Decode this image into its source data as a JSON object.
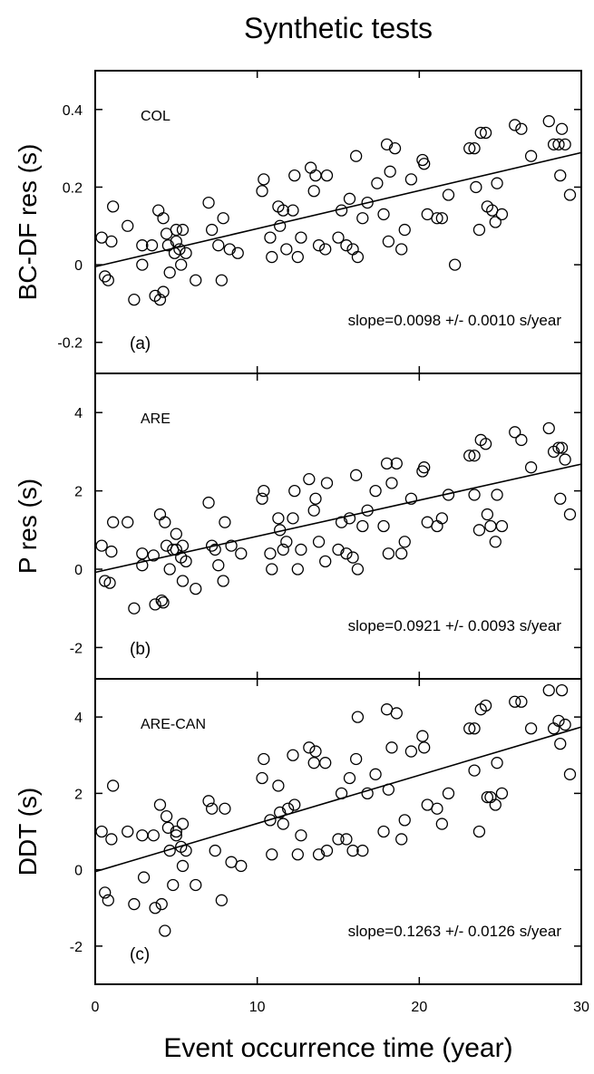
{
  "title": "Synthetic tests",
  "chart_data": {
    "type": "scatter",
    "title": "Synthetic tests",
    "xlabel": "Event occurrence time (year)",
    "xlim": [
      0,
      30
    ],
    "xticks": [
      0,
      10,
      20,
      30
    ],
    "grid": false,
    "panels": [
      {
        "letter": "(a)",
        "station": "COL",
        "ylabel": "BC-DF res (s)",
        "ylim": [
          -0.28,
          0.5
        ],
        "yticks": [
          -0.2,
          0,
          0.2,
          0.4
        ],
        "ytick_labels": [
          "-0.2",
          "0",
          "0.2",
          "0.4"
        ],
        "slope_text": "slope=0.0098 +/- 0.0010 s/year",
        "fit": {
          "intercept": -0.005,
          "slope": 0.0098
        },
        "points": [
          [
            0.4,
            0.07
          ],
          [
            0.6,
            -0.03
          ],
          [
            0.8,
            -0.04
          ],
          [
            1.0,
            0.06
          ],
          [
            1.1,
            0.15
          ],
          [
            2.0,
            0.1
          ],
          [
            2.4,
            -0.09
          ],
          [
            2.9,
            0.05
          ],
          [
            2.9,
            0.0
          ],
          [
            3.5,
            0.05
          ],
          [
            3.7,
            -0.08
          ],
          [
            3.9,
            0.14
          ],
          [
            4.0,
            -0.09
          ],
          [
            4.2,
            0.12
          ],
          [
            4.2,
            -0.07
          ],
          [
            4.4,
            0.08
          ],
          [
            4.5,
            0.05
          ],
          [
            4.6,
            -0.02
          ],
          [
            4.9,
            0.03
          ],
          [
            5.0,
            0.09
          ],
          [
            5.0,
            0.06
          ],
          [
            5.2,
            0.04
          ],
          [
            5.3,
            0.0
          ],
          [
            5.4,
            0.09
          ],
          [
            5.6,
            0.03
          ],
          [
            6.2,
            -0.04
          ],
          [
            7.0,
            0.16
          ],
          [
            7.2,
            0.09
          ],
          [
            7.6,
            0.05
          ],
          [
            7.9,
            0.12
          ],
          [
            7.8,
            -0.04
          ],
          [
            8.3,
            0.04
          ],
          [
            8.8,
            0.03
          ],
          [
            10.3,
            0.19
          ],
          [
            10.4,
            0.22
          ],
          [
            10.8,
            0.07
          ],
          [
            10.9,
            0.02
          ],
          [
            11.3,
            0.15
          ],
          [
            11.4,
            0.1
          ],
          [
            11.6,
            0.14
          ],
          [
            11.8,
            0.04
          ],
          [
            12.2,
            0.14
          ],
          [
            12.3,
            0.23
          ],
          [
            12.5,
            0.02
          ],
          [
            12.7,
            0.07
          ],
          [
            13.3,
            0.25
          ],
          [
            13.5,
            0.19
          ],
          [
            13.6,
            0.23
          ],
          [
            13.8,
            0.05
          ],
          [
            14.2,
            0.04
          ],
          [
            14.3,
            0.23
          ],
          [
            15.0,
            0.07
          ],
          [
            15.2,
            0.14
          ],
          [
            15.5,
            0.05
          ],
          [
            15.7,
            0.17
          ],
          [
            15.9,
            0.04
          ],
          [
            16.1,
            0.28
          ],
          [
            16.2,
            0.02
          ],
          [
            16.5,
            0.12
          ],
          [
            16.8,
            0.16
          ],
          [
            17.4,
            0.21
          ],
          [
            17.8,
            0.13
          ],
          [
            18.0,
            0.31
          ],
          [
            18.1,
            0.06
          ],
          [
            18.2,
            0.24
          ],
          [
            18.5,
            0.3
          ],
          [
            18.9,
            0.04
          ],
          [
            19.1,
            0.09
          ],
          [
            19.5,
            0.22
          ],
          [
            20.2,
            0.27
          ],
          [
            20.3,
            0.26
          ],
          [
            20.5,
            0.13
          ],
          [
            21.1,
            0.12
          ],
          [
            21.4,
            0.12
          ],
          [
            21.8,
            0.18
          ],
          [
            22.2,
            0.0
          ],
          [
            23.1,
            0.3
          ],
          [
            23.4,
            0.3
          ],
          [
            23.5,
            0.2
          ],
          [
            23.8,
            0.34
          ],
          [
            23.7,
            0.09
          ],
          [
            24.1,
            0.34
          ],
          [
            24.2,
            0.15
          ],
          [
            24.5,
            0.14
          ],
          [
            24.7,
            0.11
          ],
          [
            24.8,
            0.21
          ],
          [
            25.1,
            0.13
          ],
          [
            25.9,
            0.36
          ],
          [
            26.3,
            0.35
          ],
          [
            26.9,
            0.28
          ],
          [
            28.0,
            0.37
          ],
          [
            28.3,
            0.31
          ],
          [
            28.6,
            0.31
          ],
          [
            28.7,
            0.23
          ],
          [
            28.8,
            0.35
          ],
          [
            29.0,
            0.31
          ],
          [
            29.3,
            0.18
          ]
        ]
      },
      {
        "letter": "(b)",
        "station": "ARE",
        "ylabel": "P res (s)",
        "ylim": [
          -2.8,
          5.0
        ],
        "yticks": [
          -2,
          0,
          2,
          4
        ],
        "ytick_labels": [
          "-2",
          "0",
          "2",
          "4"
        ],
        "slope_text": "slope=0.0921 +/- 0.0093 s/year",
        "fit": {
          "intercept": -0.08,
          "slope": 0.0921
        },
        "points": [
          [
            0.4,
            0.6
          ],
          [
            0.6,
            -0.3
          ],
          [
            0.9,
            -0.35
          ],
          [
            1.0,
            0.45
          ],
          [
            1.1,
            1.2
          ],
          [
            2.0,
            1.2
          ],
          [
            2.4,
            -1.0
          ],
          [
            2.9,
            0.1
          ],
          [
            2.9,
            0.4
          ],
          [
            3.6,
            0.35
          ],
          [
            3.7,
            -0.9
          ],
          [
            4.0,
            1.4
          ],
          [
            4.1,
            -0.8
          ],
          [
            4.2,
            -0.85
          ],
          [
            4.3,
            1.2
          ],
          [
            4.4,
            0.6
          ],
          [
            4.6,
            0.0
          ],
          [
            4.8,
            0.5
          ],
          [
            5.0,
            0.9
          ],
          [
            5.0,
            0.5
          ],
          [
            5.3,
            0.3
          ],
          [
            5.4,
            -0.3
          ],
          [
            5.4,
            0.6
          ],
          [
            5.6,
            0.2
          ],
          [
            6.2,
            -0.5
          ],
          [
            7.0,
            1.7
          ],
          [
            7.2,
            0.6
          ],
          [
            7.4,
            0.5
          ],
          [
            7.6,
            0.1
          ],
          [
            7.9,
            -0.3
          ],
          [
            8.0,
            1.2
          ],
          [
            8.4,
            0.6
          ],
          [
            9.0,
            0.4
          ],
          [
            10.3,
            1.8
          ],
          [
            10.4,
            2.0
          ],
          [
            10.8,
            0.4
          ],
          [
            10.9,
            0.0
          ],
          [
            11.3,
            1.3
          ],
          [
            11.4,
            1.0
          ],
          [
            11.6,
            0.5
          ],
          [
            11.8,
            0.7
          ],
          [
            12.2,
            1.3
          ],
          [
            12.3,
            2.0
          ],
          [
            12.5,
            0.0
          ],
          [
            12.7,
            0.5
          ],
          [
            13.2,
            2.3
          ],
          [
            13.5,
            1.5
          ],
          [
            13.6,
            1.8
          ],
          [
            13.8,
            0.7
          ],
          [
            14.2,
            0.2
          ],
          [
            14.3,
            2.2
          ],
          [
            15.0,
            0.5
          ],
          [
            15.2,
            1.2
          ],
          [
            15.5,
            0.4
          ],
          [
            15.7,
            1.3
          ],
          [
            15.9,
            0.3
          ],
          [
            16.1,
            2.4
          ],
          [
            16.2,
            0.0
          ],
          [
            16.5,
            1.1
          ],
          [
            16.8,
            1.5
          ],
          [
            17.3,
            2.0
          ],
          [
            17.8,
            1.1
          ],
          [
            18.0,
            2.7
          ],
          [
            18.1,
            0.4
          ],
          [
            18.3,
            2.2
          ],
          [
            18.6,
            2.7
          ],
          [
            18.9,
            0.4
          ],
          [
            19.1,
            0.7
          ],
          [
            19.5,
            1.8
          ],
          [
            20.2,
            2.5
          ],
          [
            20.3,
            2.6
          ],
          [
            20.5,
            1.2
          ],
          [
            21.1,
            1.1
          ],
          [
            21.4,
            1.3
          ],
          [
            21.8,
            1.9
          ],
          [
            23.1,
            2.9
          ],
          [
            23.4,
            2.9
          ],
          [
            23.4,
            1.9
          ],
          [
            23.8,
            3.3
          ],
          [
            23.7,
            1.0
          ],
          [
            24.1,
            3.2
          ],
          [
            24.2,
            1.4
          ],
          [
            24.4,
            1.1
          ],
          [
            24.7,
            0.7
          ],
          [
            24.8,
            1.9
          ],
          [
            25.1,
            1.1
          ],
          [
            25.9,
            3.5
          ],
          [
            26.3,
            3.3
          ],
          [
            26.9,
            2.6
          ],
          [
            28.0,
            3.6
          ],
          [
            28.3,
            3.0
          ],
          [
            28.6,
            3.1
          ],
          [
            28.7,
            1.8
          ],
          [
            28.8,
            3.1
          ],
          [
            29.0,
            2.8
          ],
          [
            29.3,
            1.4
          ]
        ]
      },
      {
        "letter": "(c)",
        "station": "ARE-CAN",
        "ylabel": "DDT (s)",
        "ylim": [
          -3.0,
          5.0
        ],
        "yticks": [
          -2,
          0,
          2,
          4
        ],
        "ytick_labels": [
          "-2",
          "0",
          "2",
          "4"
        ],
        "slope_text": "slope=0.1263 +/- 0.0126 s/year",
        "fit": {
          "intercept": -0.05,
          "slope": 0.1263
        },
        "points": [
          [
            0.4,
            1.0
          ],
          [
            0.6,
            -0.6
          ],
          [
            0.8,
            -0.8
          ],
          [
            1.0,
            0.8
          ],
          [
            1.1,
            2.2
          ],
          [
            2.0,
            1.0
          ],
          [
            2.4,
            -0.9
          ],
          [
            2.9,
            0.9
          ],
          [
            3.0,
            -0.2
          ],
          [
            3.6,
            0.9
          ],
          [
            3.7,
            -1.0
          ],
          [
            4.0,
            1.7
          ],
          [
            4.1,
            -0.9
          ],
          [
            4.3,
            -1.6
          ],
          [
            4.4,
            1.4
          ],
          [
            4.5,
            1.1
          ],
          [
            4.6,
            0.5
          ],
          [
            4.8,
            -0.4
          ],
          [
            5.0,
            1.0
          ],
          [
            5.0,
            0.9
          ],
          [
            5.3,
            0.6
          ],
          [
            5.4,
            0.1
          ],
          [
            5.4,
            1.2
          ],
          [
            5.6,
            0.5
          ],
          [
            6.2,
            -0.4
          ],
          [
            7.0,
            1.8
          ],
          [
            7.2,
            1.6
          ],
          [
            7.4,
            0.5
          ],
          [
            7.8,
            -0.8
          ],
          [
            8.0,
            1.6
          ],
          [
            8.4,
            0.2
          ],
          [
            9.0,
            0.1
          ],
          [
            10.3,
            2.4
          ],
          [
            10.4,
            2.9
          ],
          [
            10.8,
            1.3
          ],
          [
            10.9,
            0.4
          ],
          [
            11.3,
            2.2
          ],
          [
            11.4,
            1.5
          ],
          [
            11.6,
            1.2
          ],
          [
            11.9,
            1.6
          ],
          [
            12.2,
            3.0
          ],
          [
            12.3,
            1.7
          ],
          [
            12.5,
            0.4
          ],
          [
            12.7,
            0.9
          ],
          [
            13.2,
            3.2
          ],
          [
            13.5,
            2.8
          ],
          [
            13.6,
            3.1
          ],
          [
            13.8,
            0.4
          ],
          [
            14.2,
            2.8
          ],
          [
            14.3,
            0.5
          ],
          [
            15.0,
            0.8
          ],
          [
            15.2,
            2.0
          ],
          [
            15.5,
            0.8
          ],
          [
            15.7,
            2.4
          ],
          [
            15.9,
            0.5
          ],
          [
            16.1,
            2.9
          ],
          [
            16.2,
            4.0
          ],
          [
            16.5,
            0.5
          ],
          [
            16.8,
            2.0
          ],
          [
            17.3,
            2.5
          ],
          [
            17.8,
            1.0
          ],
          [
            18.0,
            4.2
          ],
          [
            18.1,
            2.1
          ],
          [
            18.3,
            3.2
          ],
          [
            18.6,
            4.1
          ],
          [
            18.9,
            0.8
          ],
          [
            19.1,
            1.3
          ],
          [
            19.5,
            3.1
          ],
          [
            20.2,
            3.5
          ],
          [
            20.3,
            3.2
          ],
          [
            20.5,
            1.7
          ],
          [
            21.1,
            1.6
          ],
          [
            21.4,
            1.2
          ],
          [
            21.8,
            2.0
          ],
          [
            23.1,
            3.7
          ],
          [
            23.4,
            3.7
          ],
          [
            23.4,
            2.6
          ],
          [
            23.8,
            4.2
          ],
          [
            23.7,
            1.0
          ],
          [
            24.1,
            4.3
          ],
          [
            24.2,
            1.9
          ],
          [
            24.4,
            1.9
          ],
          [
            24.7,
            1.7
          ],
          [
            24.8,
            2.8
          ],
          [
            25.1,
            2.0
          ],
          [
            25.9,
            4.4
          ],
          [
            26.3,
            4.4
          ],
          [
            26.9,
            3.7
          ],
          [
            28.0,
            4.7
          ],
          [
            28.3,
            3.7
          ],
          [
            28.6,
            3.9
          ],
          [
            28.7,
            3.3
          ],
          [
            28.8,
            4.7
          ],
          [
            29.0,
            3.8
          ],
          [
            29.3,
            2.5
          ]
        ]
      }
    ]
  }
}
